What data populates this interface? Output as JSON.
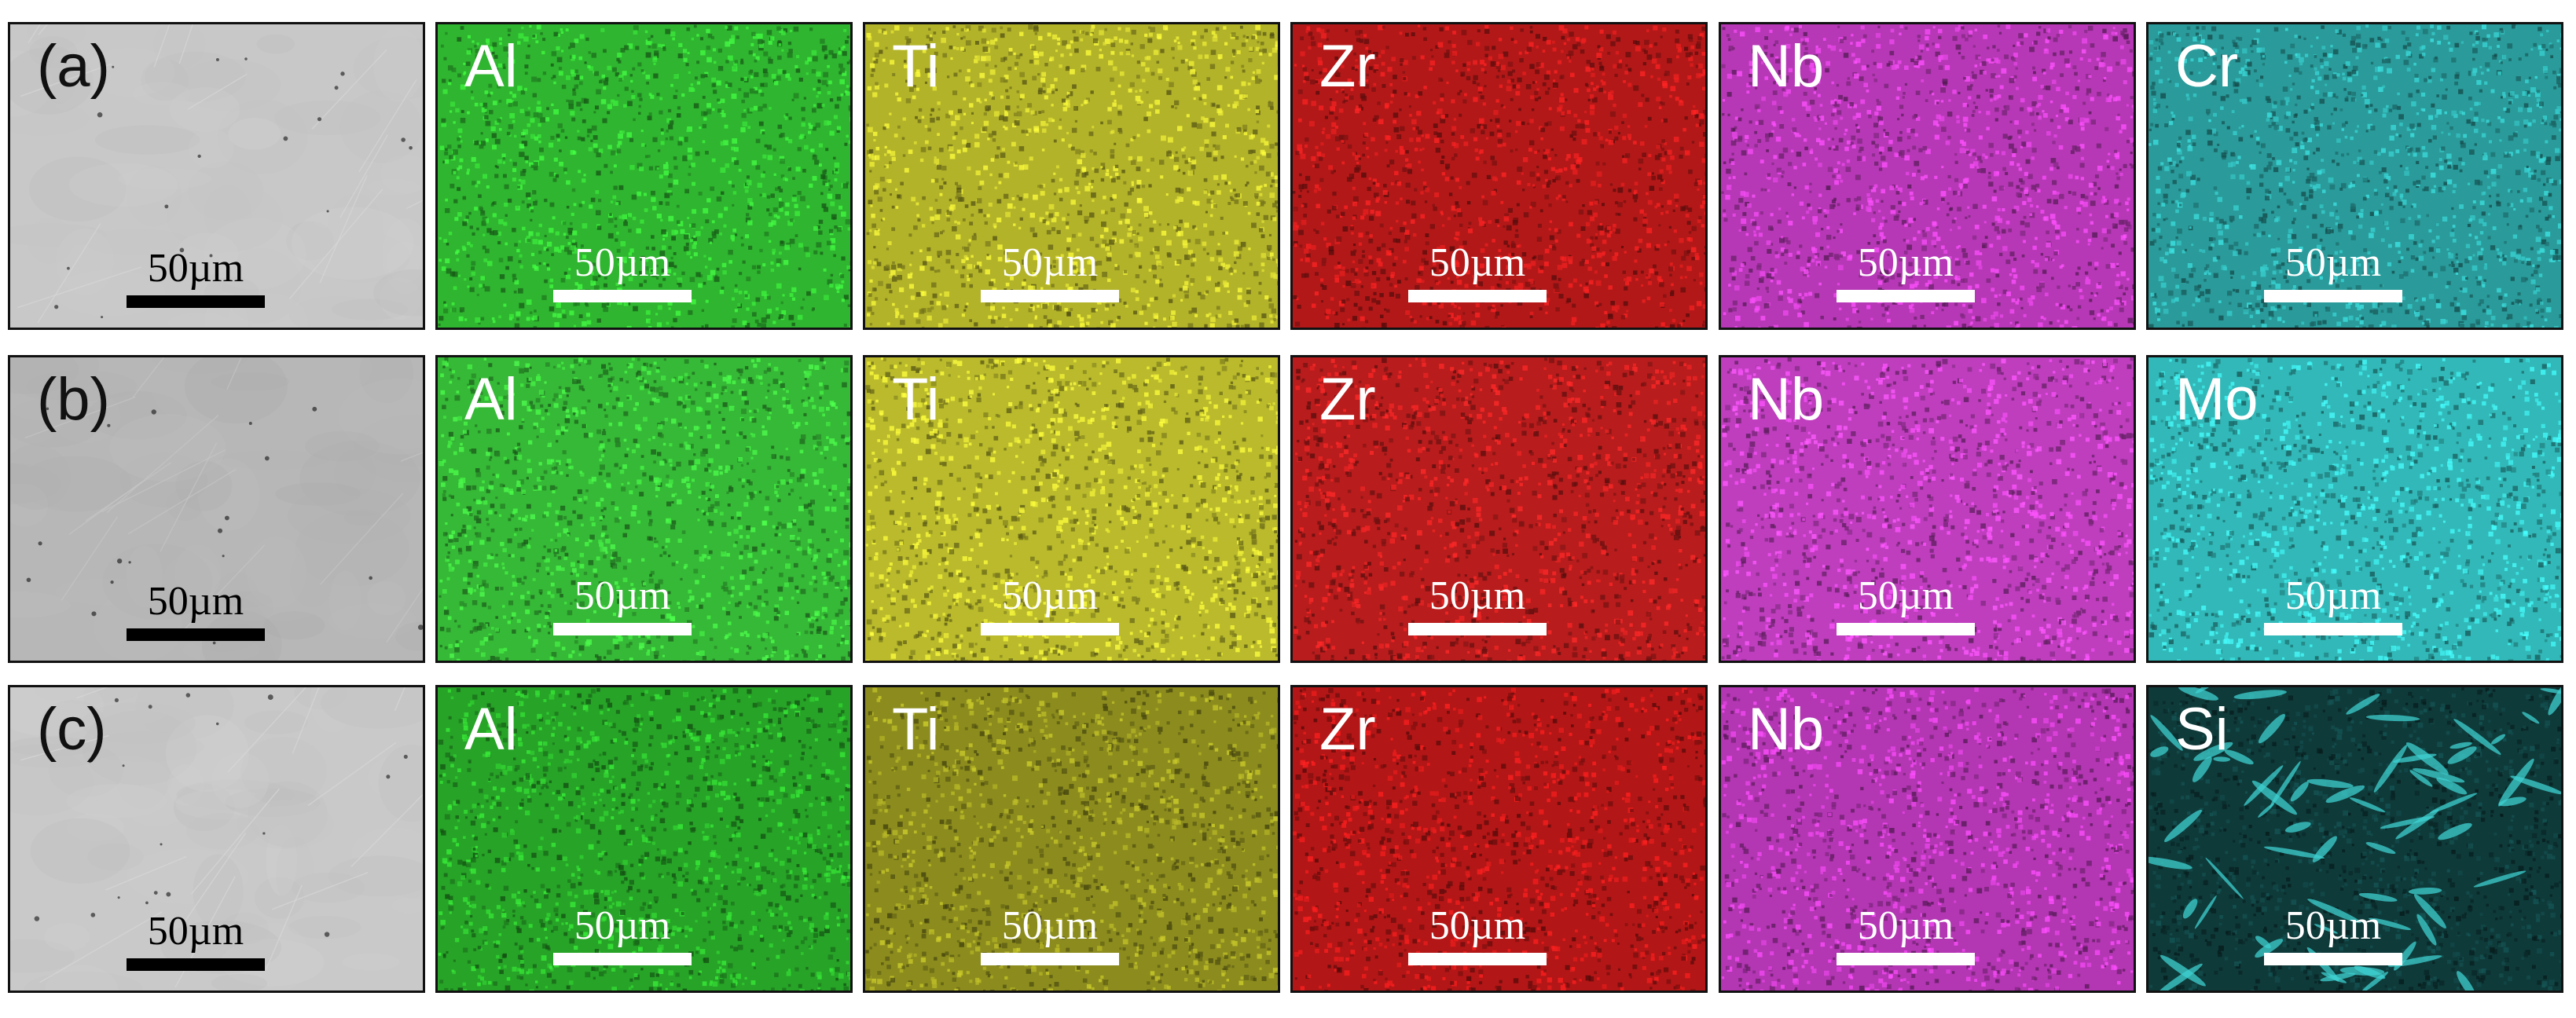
{
  "rows": [
    {
      "row_label": "(a)",
      "panels": [
        {
          "kind": "sem",
          "element": "",
          "base_color": "#c8c8c8",
          "scale_bar": "50µm"
        },
        {
          "kind": "map",
          "element": "Al",
          "base_color": "#2fb52f",
          "scale_bar": "50µm"
        },
        {
          "kind": "map",
          "element": "Ti",
          "base_color": "#b3b32a",
          "scale_bar": "50µm"
        },
        {
          "kind": "map",
          "element": "Zr",
          "base_color": "#b31818",
          "scale_bar": "50µm"
        },
        {
          "kind": "map",
          "element": "Nb",
          "base_color": "#b638b6",
          "scale_bar": "50µm"
        },
        {
          "kind": "map",
          "element": "Cr",
          "base_color": "#2a9a9a",
          "scale_bar": "50µm"
        }
      ]
    },
    {
      "row_label": "(b)",
      "panels": [
        {
          "kind": "sem",
          "element": "",
          "base_color": "#b7b7b7",
          "scale_bar": "50µm"
        },
        {
          "kind": "map",
          "element": "Al",
          "base_color": "#36b936",
          "scale_bar": "50µm"
        },
        {
          "kind": "map",
          "element": "Ti",
          "base_color": "#baba2c",
          "scale_bar": "50µm"
        },
        {
          "kind": "map",
          "element": "Zr",
          "base_color": "#b81c1c",
          "scale_bar": "50µm"
        },
        {
          "kind": "map",
          "element": "Nb",
          "base_color": "#be3ebe",
          "scale_bar": "50µm"
        },
        {
          "kind": "map",
          "element": "Mo",
          "base_color": "#32b8b8",
          "scale_bar": "50µm"
        }
      ]
    },
    {
      "row_label": "(c)",
      "panels": [
        {
          "kind": "sem",
          "element": "",
          "base_color": "#c9c9c9",
          "scale_bar": "50µm"
        },
        {
          "kind": "map",
          "element": "Al",
          "base_color": "#27a327",
          "scale_bar": "50µm"
        },
        {
          "kind": "map",
          "element": "Ti",
          "base_color": "#8c8c1e",
          "scale_bar": "50µm"
        },
        {
          "kind": "map",
          "element": "Zr",
          "base_color": "#b31616",
          "scale_bar": "50µm"
        },
        {
          "kind": "map",
          "element": "Nb",
          "base_color": "#b336b3",
          "scale_bar": "50µm"
        },
        {
          "kind": "map",
          "element": "Si",
          "base_color": "#0f3a3a",
          "scale_bar": "50µm"
        }
      ]
    }
  ]
}
